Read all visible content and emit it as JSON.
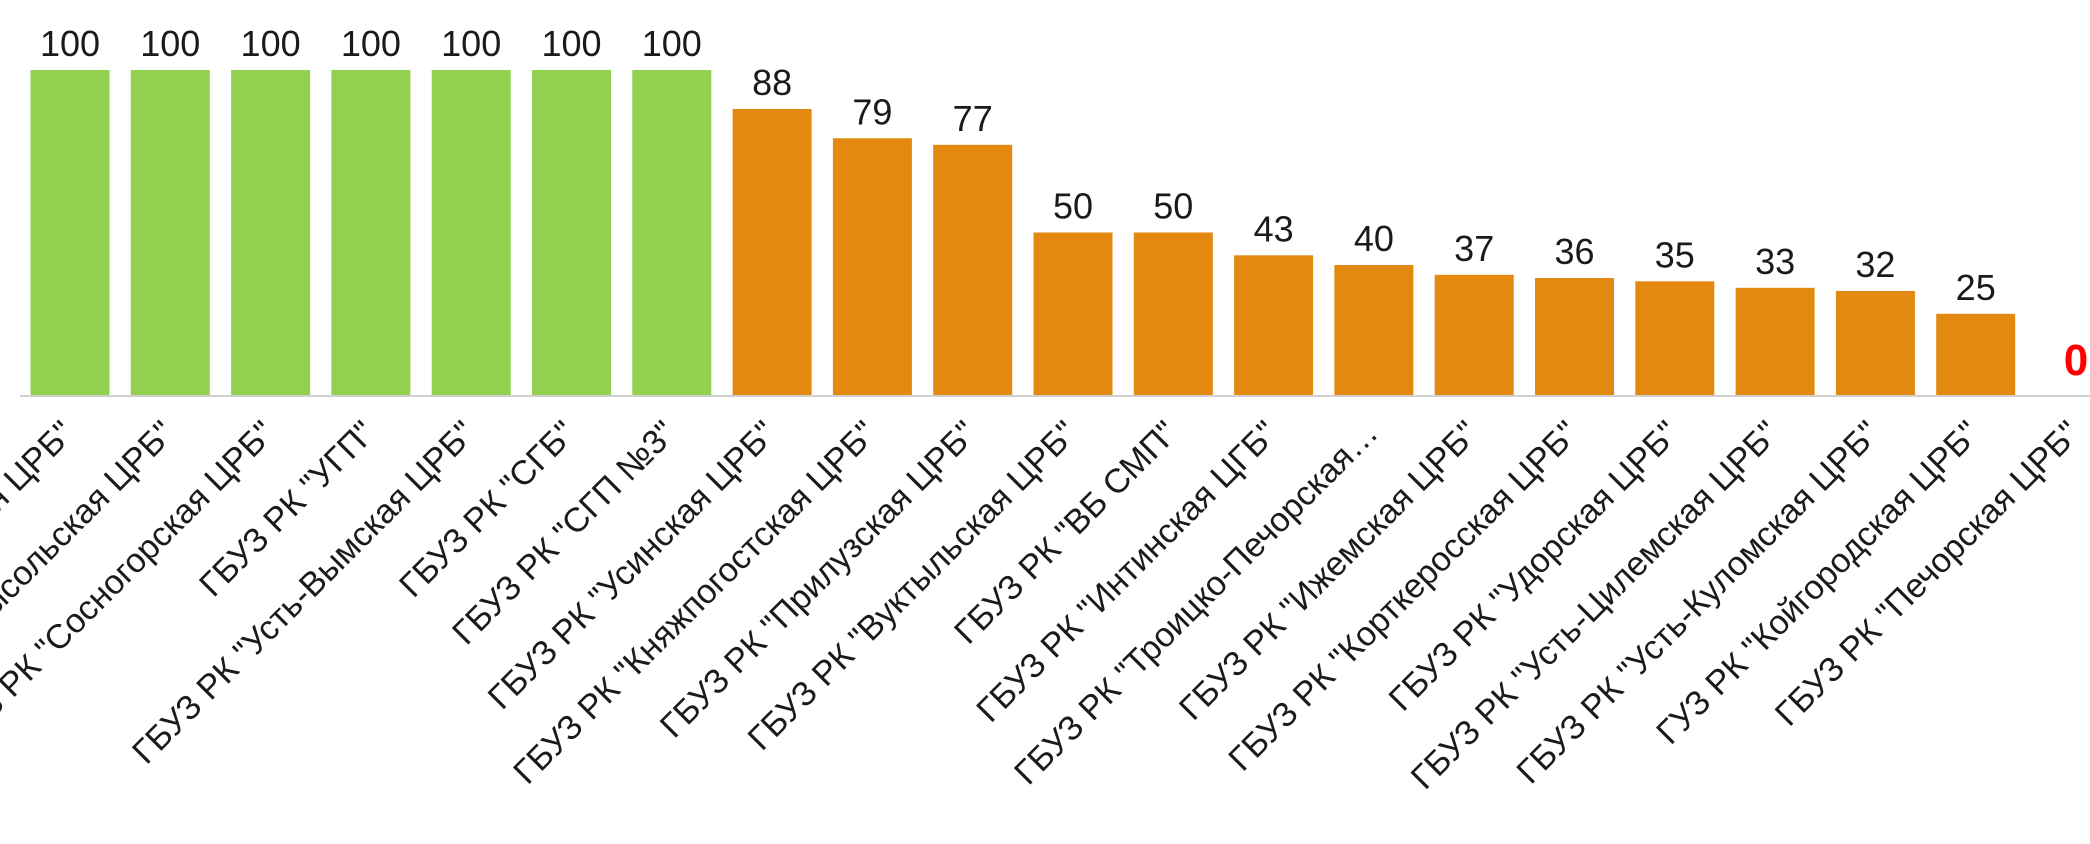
{
  "colors": {
    "high": "#92d050",
    "low": "#e3890f",
    "zero_label": "#ff0000",
    "axis": "#d0d0d0",
    "text": "#1a1a1a"
  },
  "chart_data": {
    "type": "bar",
    "categories": [
      "ГБУЗ РК \"Сыктывдинская ЦРБ\"",
      "ГБУЗ РК \"Сысольская ЦРБ\"",
      "ГБУЗ РК \"Сосногорская ЦРБ\"",
      "ГБУЗ РК \"УГП\"",
      "ГБУЗ РК \"Усть-Вымская ЦРБ\"",
      "ГБУЗ РК \"СГБ\"",
      "ГБУЗ РК \"СГП №3\"",
      "ГБУЗ РК \"Усинская ЦРБ\"",
      "ГБУЗ РК \"Княжпогостская ЦРБ\"",
      "ГБУЗ РК \"Прилузская ЦРБ\"",
      "ГБУЗ РК \"Вуктыльская ЦРБ\"",
      "ГБУЗ РК \"ВБ СМП\"",
      "ГБУЗ РК \"Интинская ЦГБ\"",
      "ГБУЗ РК \"Троицко-Печорская…",
      "ГБУЗ РК \"Ижемская ЦРБ\"",
      "ГБУЗ РК \"Корткеросская ЦРБ\"",
      "ГБУЗ РК \"Удорская ЦРБ\"",
      "ГБУЗ РК \"Усть-Цилемская ЦРБ\"",
      "ГБУЗ РК \"Усть-Куломская ЦРБ\"",
      "ГУЗ РК \"Койгородская ЦРБ\"",
      "ГБУЗ РК \"Печорская ЦРБ\""
    ],
    "values": [
      100,
      100,
      100,
      100,
      100,
      100,
      100,
      88,
      79,
      77,
      50,
      50,
      43,
      40,
      37,
      36,
      35,
      33,
      32,
      25,
      0
    ],
    "value_labels": [
      "100",
      "100",
      "100",
      "100",
      "100",
      "100",
      "100",
      "88",
      "79",
      "77",
      "50",
      "50",
      "43",
      "40",
      "37",
      "36",
      "35",
      "33",
      "32",
      "25",
      "0"
    ],
    "bar_colors": [
      "high",
      "high",
      "high",
      "high",
      "high",
      "high",
      "high",
      "low",
      "low",
      "low",
      "low",
      "low",
      "low",
      "low",
      "low",
      "low",
      "low",
      "low",
      "low",
      "low",
      "low"
    ],
    "title": "",
    "xlabel": "",
    "ylabel": "",
    "ylim": [
      0,
      100
    ],
    "grid": false,
    "legend": "none"
  }
}
